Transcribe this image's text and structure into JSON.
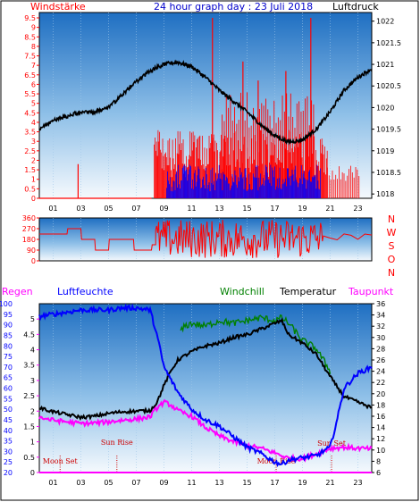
{
  "colors": {
    "frame": "#000000",
    "wind_axis": "#ff0000",
    "pressure_axis": "#000000",
    "title": "#0000cc",
    "rain_axis": "#ff00ff",
    "humidity_axis": "#0000ff",
    "temp_axis": "#000000",
    "windchill": "#008000",
    "dewpoint": "#ff00ff",
    "gust": "#ff0000",
    "avgwind": "#0000ff",
    "pressure": "#000000",
    "winddir": "#ff0000",
    "sun": "#cc0000",
    "moon": "#cc0000",
    "day_line": "#cc0000"
  },
  "labels": {
    "title": "24 hour graph day : 23 Juli 2018",
    "wind": "Windstärke",
    "pressure": "Luftdruck",
    "rain": "Regen",
    "humidity": "Luftfeuchte",
    "windchill": "Windchill",
    "temperature": "Temperatur",
    "dewpoint": "Taupunkt",
    "dir_letters": [
      "N",
      "W",
      "S",
      "O",
      "N"
    ],
    "sun_rise": "Sun Rise",
    "sun_set": "Sun Set",
    "moon_set": "Moon Set",
    "moon_rise": "Moon Rise"
  },
  "chart_data": [
    {
      "type": "line",
      "name": "wind-pressure-panel",
      "x_ticks": [
        "01",
        "03",
        "05",
        "07",
        "09",
        "11",
        "13",
        "15",
        "17",
        "19",
        "21",
        "23"
      ],
      "xlim": [
        0,
        24
      ],
      "wind_ticks": [
        "0",
        "0.5",
        "1",
        "1.5",
        "2",
        "2.5",
        "3",
        "3.5",
        "4",
        "4.5",
        "5",
        "5.5",
        "6",
        "6.5",
        "7",
        "7.5",
        "8",
        "8.5",
        "9",
        "9.5"
      ],
      "wind_ylim": [
        0,
        9.5
      ],
      "pressure_ticks": [
        "1018",
        "1018.5",
        "1019",
        "1019.5",
        "1020",
        "1020.5",
        "1021",
        "1021.5",
        "1022"
      ],
      "pressure_ylim": [
        1017.9,
        1022.2
      ],
      "series": [
        {
          "name": "Luftdruck",
          "x": [
            0,
            1,
            2,
            3,
            4,
            5,
            6,
            7,
            8,
            9,
            10,
            11,
            12,
            13,
            14,
            15,
            16,
            17,
            18,
            19,
            20,
            21,
            22,
            23,
            24
          ],
          "y": [
            1019.5,
            1019.7,
            1019.8,
            1019.9,
            1019.9,
            1020.0,
            1020.3,
            1020.6,
            1020.85,
            1021.0,
            1021.05,
            1020.95,
            1020.7,
            1020.4,
            1020.15,
            1019.9,
            1019.6,
            1019.35,
            1019.2,
            1019.25,
            1019.5,
            1019.9,
            1020.4,
            1020.7,
            1020.9
          ]
        },
        {
          "name": "gust",
          "segments": [
            {
              "x": [
                0,
                8.1
              ],
              "y": [
                0,
                0
              ]
            },
            {
              "x": [
                2.8,
                2.8
              ],
              "y": [
                0,
                1.8
              ]
            }
          ],
          "active_range": [
            8.3,
            20.8
          ],
          "typical_max": 3.6,
          "peaks": [
            [
              12.5,
              9.5
            ],
            [
              14.7,
              7.2
            ],
            [
              15.8,
              6.2
            ],
            [
              19.6,
              9.5
            ],
            [
              17.8,
              6.7
            ]
          ],
          "tail_range": [
            20.8,
            23.2
          ],
          "tail_max": 1.8
        },
        {
          "name": "avgwind",
          "active_range": [
            9.2,
            20.3
          ],
          "typical_max": 1.8
        }
      ]
    },
    {
      "type": "line",
      "name": "wind-direction-panel",
      "y_ticks": [
        "360",
        "270",
        "180",
        "90",
        "0"
      ],
      "ylim": [
        0,
        360
      ],
      "series": [
        {
          "name": "direction",
          "x": [
            0,
            2,
            2.05,
            3,
            3.05,
            4,
            4.05,
            5,
            5.05,
            6.8,
            6.85,
            8.1,
            8.15,
            8.4
          ],
          "y": [
            225,
            225,
            270,
            270,
            180,
            180,
            90,
            90,
            180,
            180,
            90,
            90,
            135,
            135
          ],
          "noisy_range": [
            8.4,
            20.5
          ],
          "noisy_min": 20,
          "noisy_max": 350,
          "tail": {
            "x": [
              20.5,
              21,
              21.5,
              22,
              22.5,
              23,
              23.5,
              24
            ],
            "y": [
              225,
              200,
              180,
              210,
              200,
              190,
              210,
              200
            ]
          }
        }
      ]
    },
    {
      "type": "line",
      "name": "temp-humidity-panel",
      "humidity_ticks": [
        "100",
        "95",
        "90",
        "85",
        "80",
        "75",
        "70",
        "65",
        "60",
        "55",
        "50",
        "45",
        "40",
        "35",
        "30",
        "25",
        "20"
      ],
      "humidity_ylim": [
        20,
        100
      ],
      "rain_ticks": [
        "5",
        "4.5",
        "4",
        "3.5",
        "3",
        "2.5",
        "2",
        "1.5",
        "1",
        "0.5",
        "0"
      ],
      "rain_ylim": [
        0,
        5.5
      ],
      "temp_ticks": [
        "36",
        "34",
        "32",
        "30",
        "28",
        "26",
        "24",
        "22",
        "20",
        "18",
        "16",
        "14",
        "12",
        "10",
        "8",
        "6"
      ],
      "temp_ylim": [
        6,
        36
      ],
      "series": [
        {
          "name": "Luftfeuchte",
          "x": [
            0,
            1,
            2,
            3,
            4,
            5,
            6,
            7,
            8,
            8.5,
            9,
            9.5,
            10,
            11,
            12,
            13,
            14,
            15,
            16,
            17,
            17.5,
            18,
            19,
            20,
            21,
            21.5,
            22,
            23,
            24
          ],
          "y": [
            94,
            95,
            96,
            97,
            97,
            97,
            98,
            98,
            97,
            85,
            70,
            64,
            58,
            50,
            45,
            42,
            37,
            32,
            29,
            25,
            24,
            26,
            27,
            28,
            32,
            45,
            60,
            67,
            70
          ]
        },
        {
          "name": "Temperatur",
          "x": [
            0,
            1,
            2,
            3,
            4,
            5,
            6,
            7,
            8,
            8.5,
            9,
            9.5,
            10,
            11,
            12,
            13,
            14,
            15,
            16,
            17,
            17.5,
            18,
            19,
            20,
            21,
            22,
            23,
            24
          ],
          "y": [
            17.5,
            16.8,
            16.3,
            15.8,
            16.0,
            16.5,
            16.8,
            16.9,
            17.0,
            18.5,
            21.5,
            24.0,
            26.0,
            27.5,
            28.5,
            29.0,
            30.0,
            30.5,
            31.5,
            32.5,
            33.0,
            30.5,
            29.0,
            27.0,
            23.0,
            19.5,
            18.5,
            17.5
          ]
        },
        {
          "name": "Windchill",
          "x": [
            10.2,
            10.5,
            11,
            12,
            13,
            14,
            15,
            16,
            17,
            17.5,
            18,
            18.5,
            19,
            20,
            21
          ],
          "y": [
            31,
            32,
            32.5,
            32,
            33,
            32.5,
            33,
            33.5,
            33.0,
            33.5,
            32.5,
            31,
            29.5,
            28,
            24
          ]
        },
        {
          "name": "Taupunkt",
          "x": [
            0,
            1,
            2,
            3,
            4,
            5,
            6,
            7,
            8,
            8.5,
            9,
            9.5,
            10,
            11,
            12,
            13,
            14,
            15,
            16,
            17,
            18,
            19,
            20,
            21,
            22,
            23,
            24
          ],
          "y": [
            15.8,
            15.3,
            15.0,
            14.7,
            14.8,
            15.0,
            15.3,
            15.5,
            15.9,
            17.5,
            18.5,
            18.0,
            17.0,
            16.0,
            14.0,
            12.5,
            11.5,
            10.8,
            10.3,
            9.5,
            8.5,
            8.5,
            9.3,
            10.3,
            10.5,
            10.3,
            10.2
          ]
        },
        {
          "name": "Regen",
          "x": [
            0,
            24
          ],
          "y": [
            0,
            0
          ]
        }
      ],
      "annotations": [
        {
          "label": "sun_rise",
          "x": 5.6
        },
        {
          "label": "sun_set",
          "x": 21.1
        },
        {
          "label": "moon_set",
          "x": 1.5
        },
        {
          "label": "moon_rise",
          "x": 17.1
        }
      ]
    }
  ]
}
